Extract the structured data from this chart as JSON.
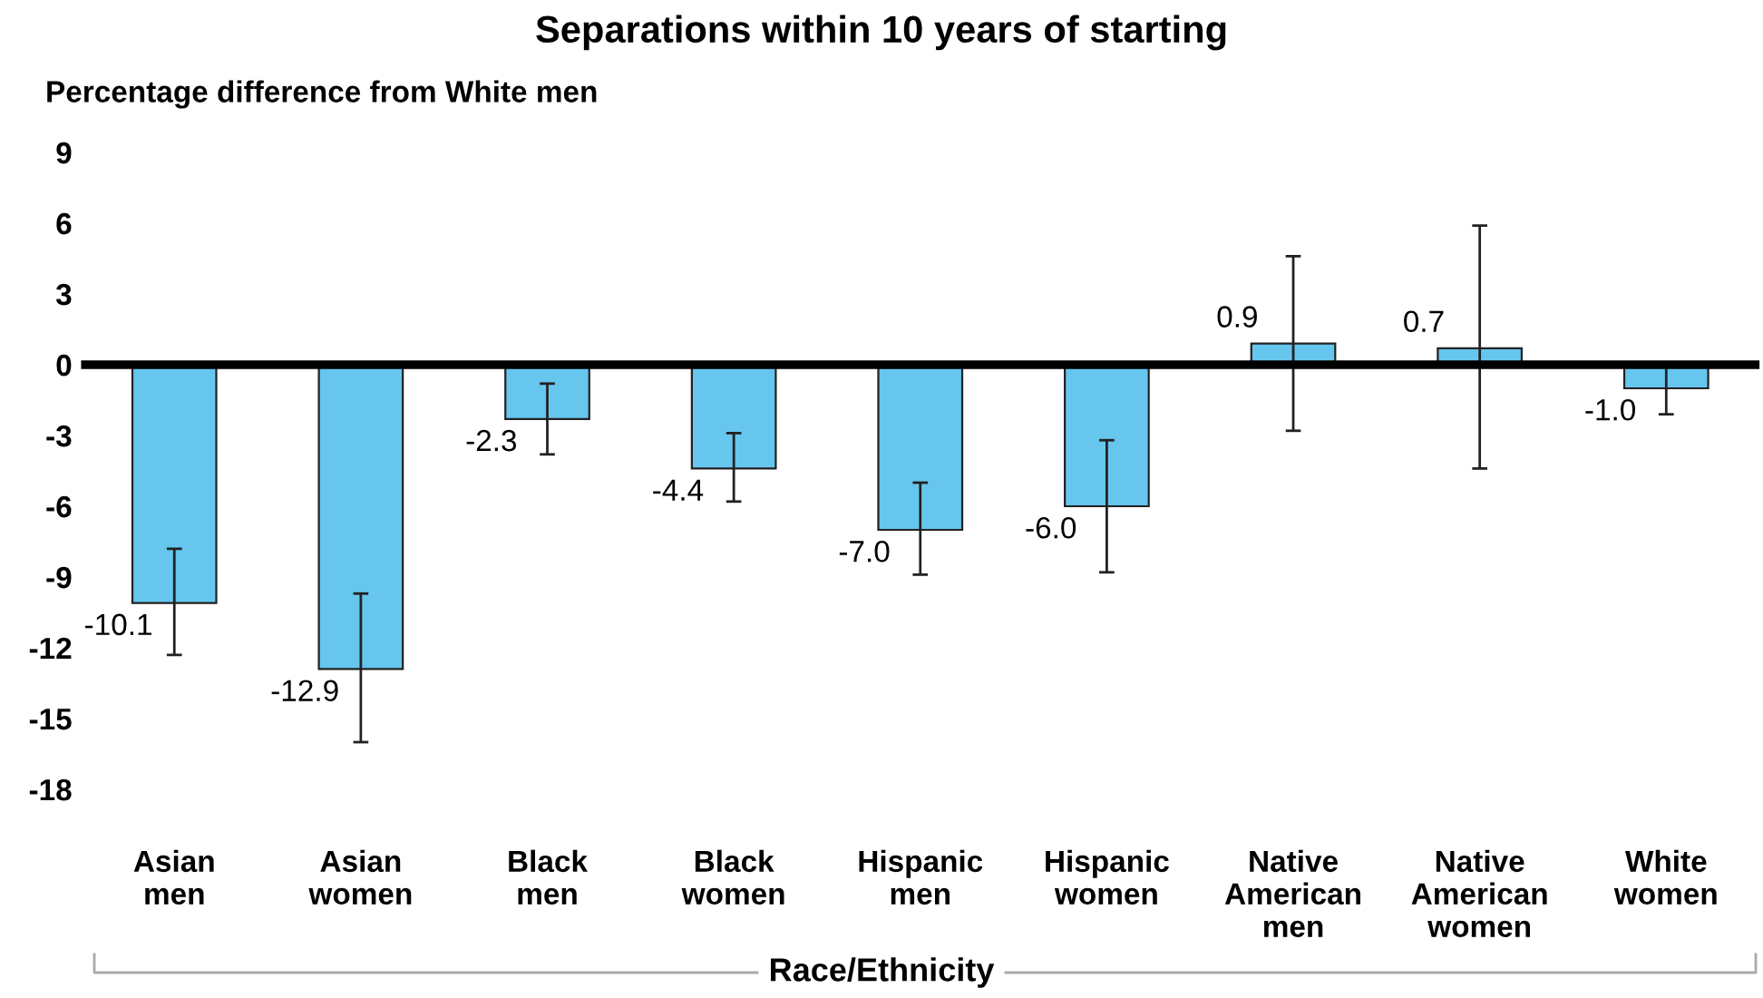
{
  "chart_data": {
    "type": "bar",
    "title": "Separations within 10 years of starting",
    "ylabel": "Percentage difference from White men",
    "xlabel": "Race/Ethnicity",
    "categories": [
      "Asian\nmen",
      "Asian\nwomen",
      "Black\nmen",
      "Black\nwomen",
      "Hispanic\nmen",
      "Hispanic\nwomen",
      "Native\nAmerican\nmen",
      "Native\nAmerican\nwomen",
      "White\nwomen"
    ],
    "values": [
      -10.1,
      -12.9,
      -2.3,
      -4.4,
      -7.0,
      -6.0,
      0.9,
      0.7,
      -1.0
    ],
    "errors": [
      [
        -12.3,
        -7.8
      ],
      [
        -16.0,
        -9.7
      ],
      [
        -3.8,
        -0.8
      ],
      [
        -5.8,
        -2.9
      ],
      [
        -8.9,
        -5.0
      ],
      [
        -8.8,
        -3.2
      ],
      [
        -2.8,
        4.6
      ],
      [
        -4.4,
        5.9
      ],
      [
        -2.1,
        0.1
      ]
    ],
    "color": "#66c6ee",
    "value_labels": [
      "-10.1",
      "-12.9",
      "-2.3",
      "-4.4",
      "-7.0",
      "-6.0",
      "0.9",
      "0.7",
      "-1.0"
    ],
    "ylim": [
      -18,
      9
    ],
    "yticks": [
      9,
      6,
      3,
      0,
      -3,
      -6,
      -9,
      -12,
      -15,
      -18
    ],
    "grid": false,
    "ref_lines": [
      {
        "axis": "y",
        "value": 0,
        "color": "#000000"
      }
    ]
  }
}
